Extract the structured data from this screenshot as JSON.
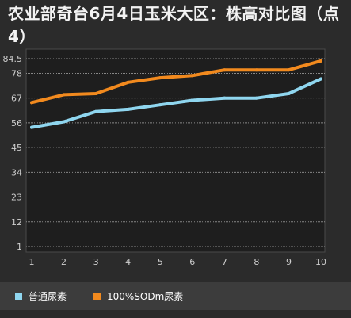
{
  "title": "农业部奇台6月4日玉米大区：株高对比图（点4）",
  "chart_data": {
    "type": "line",
    "x": [
      1,
      2,
      3,
      4,
      5,
      6,
      7,
      8,
      9,
      10
    ],
    "x_tick_labels": [
      "1",
      "2",
      "3",
      "4",
      "5",
      "6",
      "7",
      "8",
      "9",
      "10"
    ],
    "y_tick_values": [
      1,
      12,
      23,
      34,
      45,
      56,
      67,
      78,
      84.5
    ],
    "y_tick_labels": [
      "1",
      "12",
      "23",
      "34",
      "45",
      "56",
      "67",
      "78",
      "84.5"
    ],
    "ylim": [
      1,
      84.5
    ],
    "grid": true,
    "legend_position": "bottom",
    "series": [
      {
        "name": "普通尿素",
        "color": "#8fd6ef",
        "values": [
          54,
          56.5,
          61,
          62,
          64,
          66,
          67,
          67,
          69,
          75.5
        ]
      },
      {
        "name": "100%SODm尿素",
        "color": "#f28a1e",
        "values": [
          65,
          68.5,
          69,
          74,
          76,
          77,
          79.5,
          79.5,
          79.5,
          83.5
        ]
      }
    ]
  },
  "colors": {
    "background": "#2b2b2b",
    "plot_background": "#1e1e1e",
    "grid": "#aaaaaa",
    "axis_text": "#cfcfcf",
    "legend_background": "#3c3c3c"
  }
}
